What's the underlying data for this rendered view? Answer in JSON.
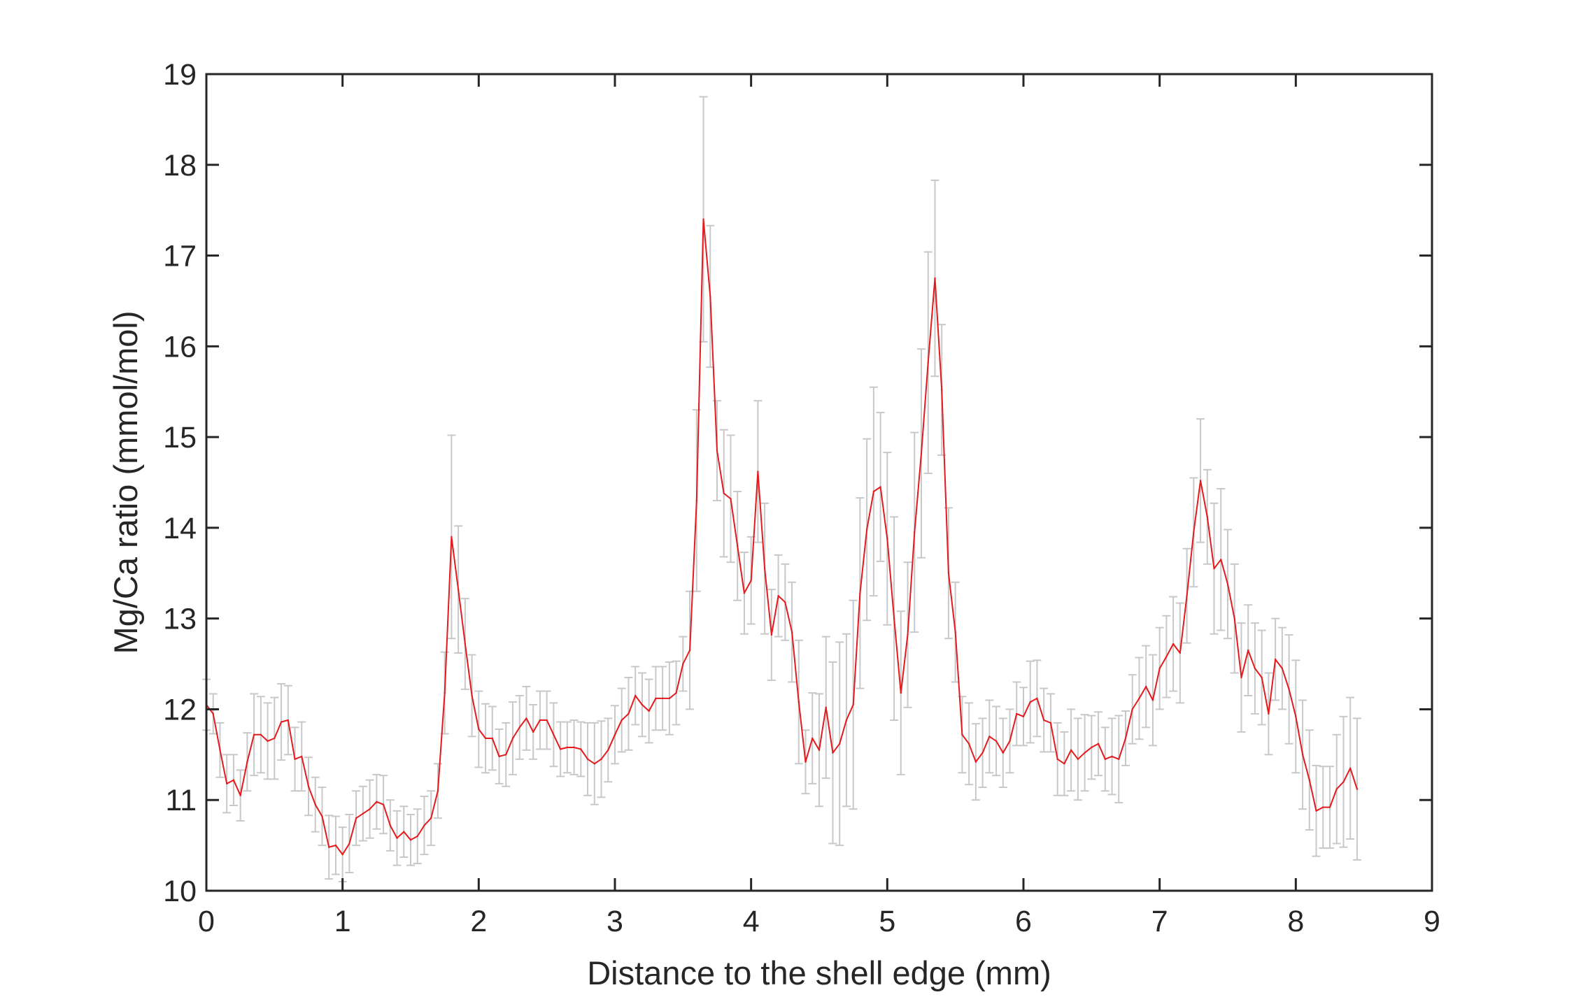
{
  "chart_data": {
    "type": "line",
    "title": "",
    "xlabel": "Distance to the shell edge (mm)",
    "ylabel": "Mg/Ca ratio (mmol/mol)",
    "xlim": [
      0,
      9
    ],
    "ylim": [
      10,
      19
    ],
    "xticks": [
      "0",
      "1",
      "2",
      "3",
      "4",
      "5",
      "6",
      "7",
      "8",
      "9"
    ],
    "yticks": [
      "10",
      "11",
      "12",
      "13",
      "14",
      "15",
      "16",
      "17",
      "18",
      "19"
    ],
    "grid": false,
    "legend": "none",
    "colors": {
      "line": "#e41a1c",
      "errorbar": "#c8c8c8",
      "axis": "#262626"
    },
    "series": [
      {
        "x": [
          0.0,
          0.05,
          0.1,
          0.15,
          0.2,
          0.25,
          0.3,
          0.35,
          0.4,
          0.45,
          0.5,
          0.55,
          0.6,
          0.65,
          0.7,
          0.75,
          0.8,
          0.85,
          0.9,
          0.95,
          1.0,
          1.05,
          1.1,
          1.15,
          1.2,
          1.25,
          1.3,
          1.35,
          1.4,
          1.45,
          1.5,
          1.55,
          1.6,
          1.65,
          1.7,
          1.75,
          1.8,
          1.85,
          1.9,
          1.95,
          2.0,
          2.05,
          2.1,
          2.15,
          2.2,
          2.25,
          2.3,
          2.35,
          2.4,
          2.45,
          2.5,
          2.55,
          2.6,
          2.65,
          2.7,
          2.75,
          2.8,
          2.85,
          2.9,
          2.95,
          3.0,
          3.05,
          3.1,
          3.15,
          3.2,
          3.25,
          3.3,
          3.35,
          3.4,
          3.45,
          3.5,
          3.55,
          3.6,
          3.65,
          3.7,
          3.75,
          3.8,
          3.85,
          3.9,
          3.95,
          4.0,
          4.05,
          4.1,
          4.15,
          4.2,
          4.25,
          4.3,
          4.35,
          4.4,
          4.45,
          4.5,
          4.55,
          4.6,
          4.65,
          4.7,
          4.75,
          4.8,
          4.85,
          4.9,
          4.95,
          5.0,
          5.05,
          5.1,
          5.15,
          5.2,
          5.25,
          5.3,
          5.35,
          5.4,
          5.45,
          5.5,
          5.55,
          5.6,
          5.65,
          5.7,
          5.75,
          5.8,
          5.85,
          5.9,
          5.95,
          6.0,
          6.05,
          6.1,
          6.15,
          6.2,
          6.25,
          6.3,
          6.35,
          6.4,
          6.45,
          6.5,
          6.55,
          6.6,
          6.65,
          6.7,
          6.75,
          6.8,
          6.85,
          6.9,
          6.95,
          7.0,
          7.05,
          7.1,
          7.15,
          7.2,
          7.25,
          7.3,
          7.35,
          7.4,
          7.45,
          7.5,
          7.55,
          7.6,
          7.65,
          7.7,
          7.75,
          7.8,
          7.85,
          7.9,
          7.95,
          8.0,
          8.05,
          8.1,
          8.15,
          8.2,
          8.25,
          8.3,
          8.35,
          8.4,
          8.45
        ],
        "y": [
          12.05,
          11.95,
          11.55,
          11.18,
          11.22,
          11.05,
          11.42,
          11.72,
          11.72,
          11.65,
          11.68,
          11.86,
          11.88,
          11.45,
          11.48,
          11.15,
          10.95,
          10.82,
          10.48,
          10.5,
          10.4,
          10.52,
          10.8,
          10.85,
          10.9,
          10.98,
          10.95,
          10.72,
          10.58,
          10.65,
          10.56,
          10.6,
          10.72,
          10.8,
          11.1,
          12.18,
          13.9,
          13.32,
          12.72,
          12.15,
          11.78,
          11.68,
          11.68,
          11.48,
          11.5,
          11.68,
          11.8,
          11.9,
          11.75,
          11.88,
          11.88,
          11.72,
          11.56,
          11.58,
          11.58,
          11.56,
          11.45,
          11.4,
          11.45,
          11.55,
          11.72,
          11.88,
          11.95,
          12.15,
          12.05,
          11.98,
          12.12,
          12.12,
          12.12,
          12.18,
          12.5,
          12.65,
          14.3,
          17.4,
          16.55,
          14.85,
          14.38,
          14.32,
          13.8,
          13.28,
          13.42,
          14.62,
          13.55,
          12.82,
          13.25,
          13.18,
          12.85,
          12.08,
          11.42,
          11.68,
          11.55,
          12.02,
          11.52,
          11.62,
          11.88,
          12.05,
          13.28,
          13.98,
          14.4,
          14.45,
          13.88,
          13.0,
          12.18,
          12.82,
          13.95,
          14.82,
          15.82,
          16.75,
          15.52,
          13.5,
          12.85,
          11.72,
          11.62,
          11.42,
          11.52,
          11.7,
          11.65,
          11.52,
          11.65,
          11.95,
          11.92,
          12.08,
          12.12,
          11.88,
          11.85,
          11.45,
          11.4,
          11.55,
          11.45,
          11.52,
          11.58,
          11.62,
          11.45,
          11.48,
          11.45,
          11.68,
          12.0,
          12.12,
          12.25,
          12.1,
          12.45,
          12.58,
          12.72,
          12.62,
          13.25,
          13.95,
          14.52,
          14.12,
          13.55,
          13.65,
          13.38,
          13.0,
          12.35,
          12.65,
          12.45,
          12.35,
          11.95,
          12.55,
          12.45,
          12.22,
          11.92,
          11.5,
          11.22,
          10.88,
          10.92,
          10.92,
          11.12,
          11.2,
          11.35,
          11.12
        ],
        "err": [
          0.28,
          0.22,
          0.3,
          0.32,
          0.28,
          0.28,
          0.32,
          0.45,
          0.42,
          0.42,
          0.45,
          0.42,
          0.38,
          0.35,
          0.38,
          0.32,
          0.3,
          0.32,
          0.35,
          0.32,
          0.3,
          0.32,
          0.3,
          0.3,
          0.32,
          0.3,
          0.32,
          0.28,
          0.3,
          0.28,
          0.28,
          0.3,
          0.32,
          0.3,
          0.3,
          0.45,
          1.12,
          0.7,
          0.5,
          0.45,
          0.42,
          0.38,
          0.35,
          0.3,
          0.35,
          0.4,
          0.35,
          0.35,
          0.3,
          0.32,
          0.32,
          0.35,
          0.3,
          0.28,
          0.3,
          0.3,
          0.4,
          0.45,
          0.42,
          0.35,
          0.32,
          0.35,
          0.4,
          0.32,
          0.35,
          0.35,
          0.35,
          0.35,
          0.4,
          0.35,
          0.3,
          0.65,
          1.0,
          1.35,
          0.78,
          0.55,
          0.7,
          0.7,
          0.6,
          0.45,
          0.48,
          0.78,
          0.72,
          0.5,
          0.45,
          0.42,
          0.55,
          0.68,
          0.35,
          0.5,
          0.62,
          0.78,
          1.0,
          1.12,
          0.95,
          1.15,
          1.05,
          1.0,
          1.15,
          0.82,
          0.95,
          1.12,
          0.9,
          0.8,
          1.1,
          1.15,
          1.22,
          1.08,
          0.72,
          0.72,
          0.55,
          0.42,
          0.45,
          0.42,
          0.38,
          0.4,
          0.38,
          0.38,
          0.35,
          0.35,
          0.32,
          0.45,
          0.42,
          0.35,
          0.32,
          0.4,
          0.35,
          0.45,
          0.45,
          0.42,
          0.35,
          0.35,
          0.35,
          0.42,
          0.48,
          0.3,
          0.38,
          0.45,
          0.45,
          0.5,
          0.45,
          0.45,
          0.52,
          0.55,
          0.52,
          0.6,
          0.68,
          0.52,
          0.72,
          0.78,
          0.6,
          0.6,
          0.6,
          0.5,
          0.5,
          0.52,
          0.45,
          0.45,
          0.45,
          0.6,
          0.62,
          0.6,
          0.55,
          0.5,
          0.45,
          0.45,
          0.6,
          0.72,
          0.78,
          0.78
        ]
      }
    ]
  }
}
